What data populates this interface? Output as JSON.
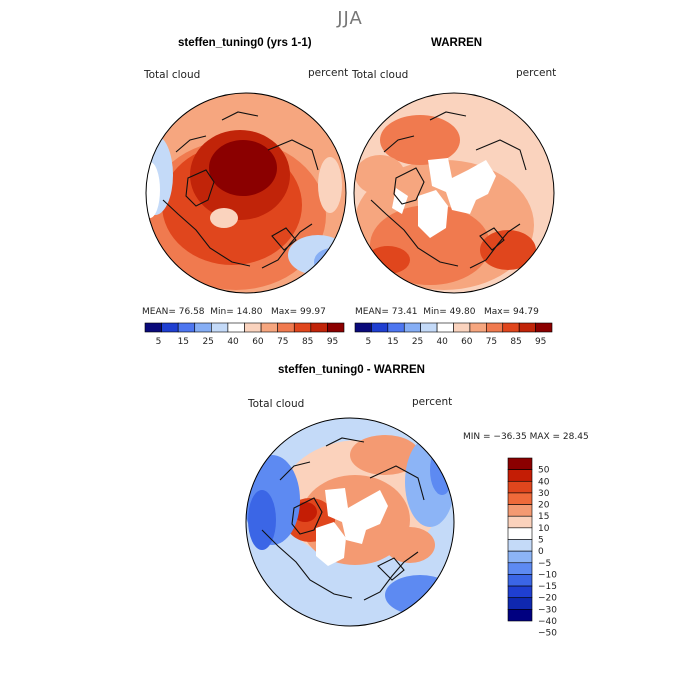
{
  "season": "JJA",
  "colors": {
    "seq": [
      "#0a0a7a",
      "#1f3fd1",
      "#4d76f0",
      "#86aef5",
      "#c4daf8",
      "#ffffff",
      "#fad3be",
      "#f6a67f",
      "#f07a4f",
      "#e0461d",
      "#c12409",
      "#8b0000"
    ],
    "div": [
      "#8b0000",
      "#c41d05",
      "#e0461d",
      "#ef6a3a",
      "#f49a72",
      "#fbd2bc",
      "#ffffff",
      "#c4daf8",
      "#8cb4f6",
      "#5d8af2",
      "#3b66e6",
      "#1f3fd1",
      "#0f28b0",
      "#000080"
    ],
    "land": "#111111"
  },
  "panels": [
    {
      "title": "steffen_tuning0 (yrs 1-1)",
      "variable": "Total cloud",
      "units": "percent",
      "stats": {
        "mean_label": "MEAN=",
        "mean": "76.58",
        "min_label": "Min=",
        "min": "14.80",
        "max_label": "Max=",
        "max": "99.97"
      },
      "colorbar_ticks": [
        "5",
        "15",
        "25",
        "40",
        "60",
        "75",
        "85",
        "95"
      ]
    },
    {
      "title": "WARREN",
      "variable": "Total cloud",
      "units": "percent",
      "stats": {
        "mean_label": "MEAN=",
        "mean": "73.41",
        "min_label": "Min=",
        "min": "49.80",
        "max_label": "Max=",
        "max": "94.79"
      },
      "colorbar_ticks": [
        "5",
        "15",
        "25",
        "40",
        "60",
        "75",
        "85",
        "95"
      ]
    }
  ],
  "diff": {
    "title": "steffen_tuning0 - WARREN",
    "variable": "Total cloud",
    "units": "percent",
    "stats": "MIN = −36.35 MAX =  28.45",
    "colorbar_ticks": [
      "50",
      "40",
      "30",
      "20",
      "15",
      "10",
      "5",
      "0",
      "−5",
      "−10",
      "−15",
      "−20",
      "−30",
      "−40",
      "−50"
    ]
  },
  "chart_data": [
    {
      "type": "heatmap",
      "projection": "north-polar-stereographic",
      "title": "steffen_tuning0 (yrs 1-1)",
      "variable": "Total cloud",
      "units": "percent",
      "mean": 76.58,
      "min": 14.8,
      "max": 99.97,
      "levels": [
        5,
        10,
        15,
        20,
        25,
        30,
        40,
        50,
        60,
        70,
        75,
        80,
        85,
        90,
        95
      ]
    },
    {
      "type": "heatmap",
      "projection": "north-polar-stereographic",
      "title": "WARREN",
      "variable": "Total cloud",
      "units": "percent",
      "mean": 73.41,
      "min": 49.8,
      "max": 94.79,
      "levels": [
        5,
        10,
        15,
        20,
        25,
        30,
        40,
        50,
        60,
        70,
        75,
        80,
        85,
        90,
        95
      ]
    },
    {
      "type": "heatmap",
      "projection": "north-polar-stereographic",
      "title": "steffen_tuning0 - WARREN",
      "variable": "Total cloud",
      "units": "percent",
      "min": -36.35,
      "max": 28.45,
      "levels": [
        -50,
        -40,
        -30,
        -20,
        -15,
        -10,
        -5,
        0,
        5,
        10,
        15,
        20,
        30,
        40,
        50
      ]
    }
  ]
}
